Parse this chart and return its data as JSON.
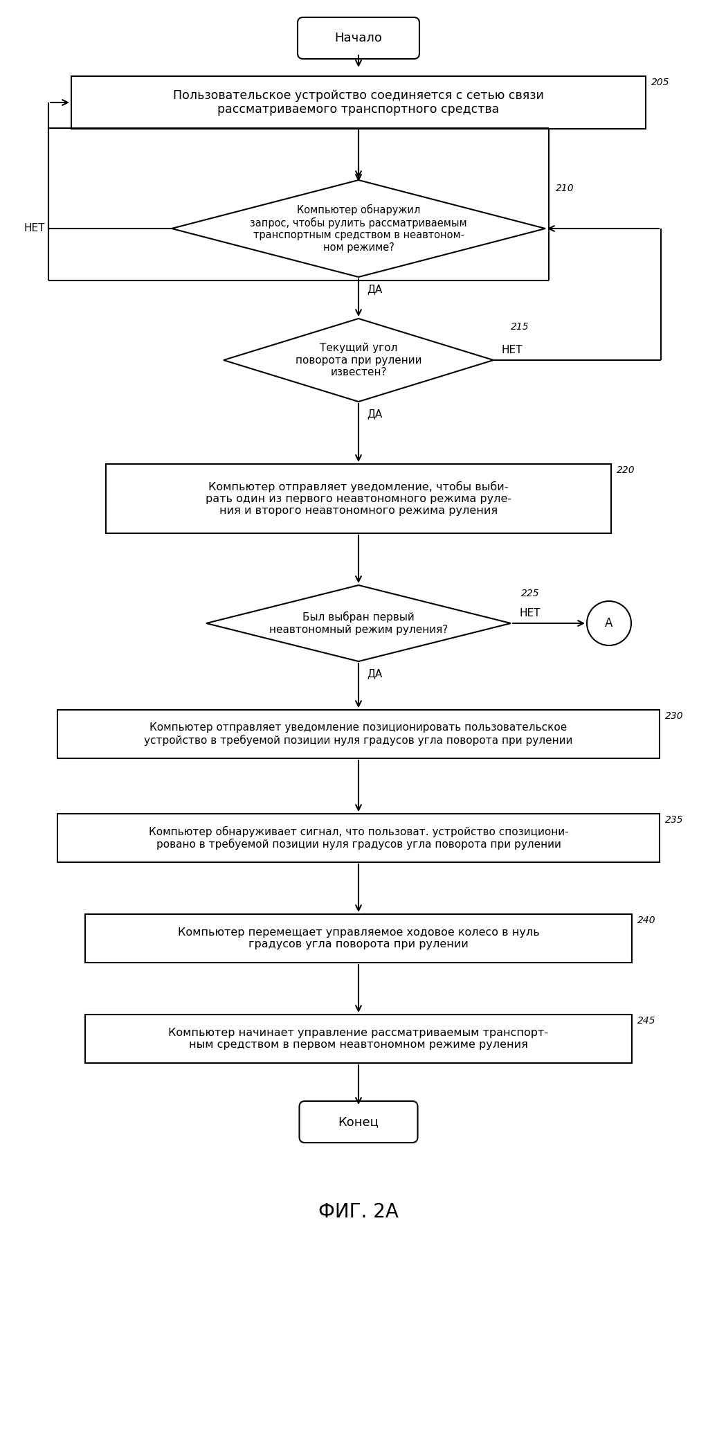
{
  "title": "ФИГ. 2А",
  "bg_color": "#ffffff",
  "line_color": "#000000",
  "start_label": "Начало",
  "end_label": "Конец",
  "connector_label": "А",
  "box205_text": "Пользовательское устройство соединяется с сетью связи\nрассматриваемого транспортного средства",
  "box205_num": "205",
  "d210_text": "Компьютер обнаружил\nзапрос, чтобы рулить рассматриваемым\nтранспортным средством в неавтоном-\nном режиме?",
  "d210_num": "210",
  "d215_text": "Текущий угол\nповорота при рулении\nизвестен?",
  "d215_num": "215",
  "box220_text": "Компьютер отправляет уведомление, чтобы выби-\nрать один из первого неавтономного режима руле-\nния и второго неавтономного режима руления",
  "box220_num": "220",
  "d225_text": "Был выбран первый\nнеавтономный режим руления?",
  "d225_num": "225",
  "box230_text": "Компьютер отправляет уведомление позиционировать пользовательское\nустройство в требуемой позиции нуля градусов угла поворота при рулении",
  "box230_num": "230",
  "box235_text": "Компьютер обнаруживает сигнал, что пользоват. устройство спозициони-\nровано в требуемой позиции нуля градусов угла поворота при рулении",
  "box235_num": "235",
  "box240_text": "Компьютер перемещает управляемое ходовое колесо в нуль\nградусов угла поворота при рулении",
  "box240_num": "240",
  "box245_text": "Компьютер начинает управление рассматриваемым транспорт-\nным средством в первом неавтономном режиме руления",
  "box245_num": "245",
  "yes_label": "ДА",
  "no_label": "НЕТ"
}
